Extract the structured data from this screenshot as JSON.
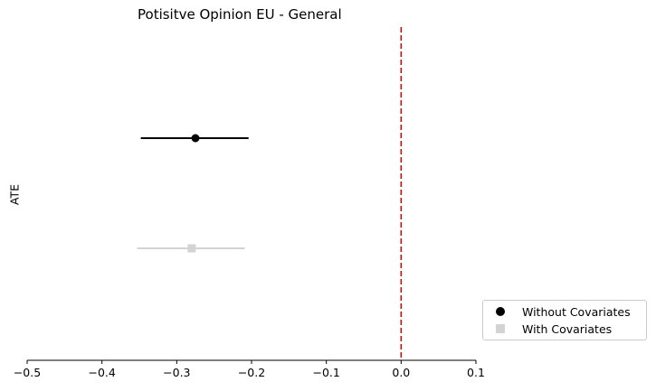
{
  "chart_data": {
    "type": "scatter",
    "title": "Potisitve Opinion EU - General",
    "xlabel": "",
    "ylabel": "ATE",
    "xlim": [
      -0.5,
      0.1
    ],
    "x_ticks": [
      -0.5,
      -0.4,
      -0.3,
      -0.2,
      -0.1,
      0.0,
      0.1
    ],
    "x_tick_labels": [
      "−0.5",
      "−0.4",
      "−0.3",
      "−0.2",
      "−0.1",
      "0.0",
      "0.1"
    ],
    "grid": false,
    "reference_line": {
      "x": 0.0,
      "color": "#e00000",
      "style": "dashed"
    },
    "series": [
      {
        "name": "Without Covariates",
        "marker": "circle",
        "color": "#000000",
        "estimate": -0.275,
        "ci_low": -0.348,
        "ci_high": -0.204
      },
      {
        "name": "With Covariates",
        "marker": "square",
        "color": "#d3d3d3",
        "estimate": -0.28,
        "ci_low": -0.353,
        "ci_high": -0.209
      }
    ],
    "legend_position": "lower-right outside"
  }
}
